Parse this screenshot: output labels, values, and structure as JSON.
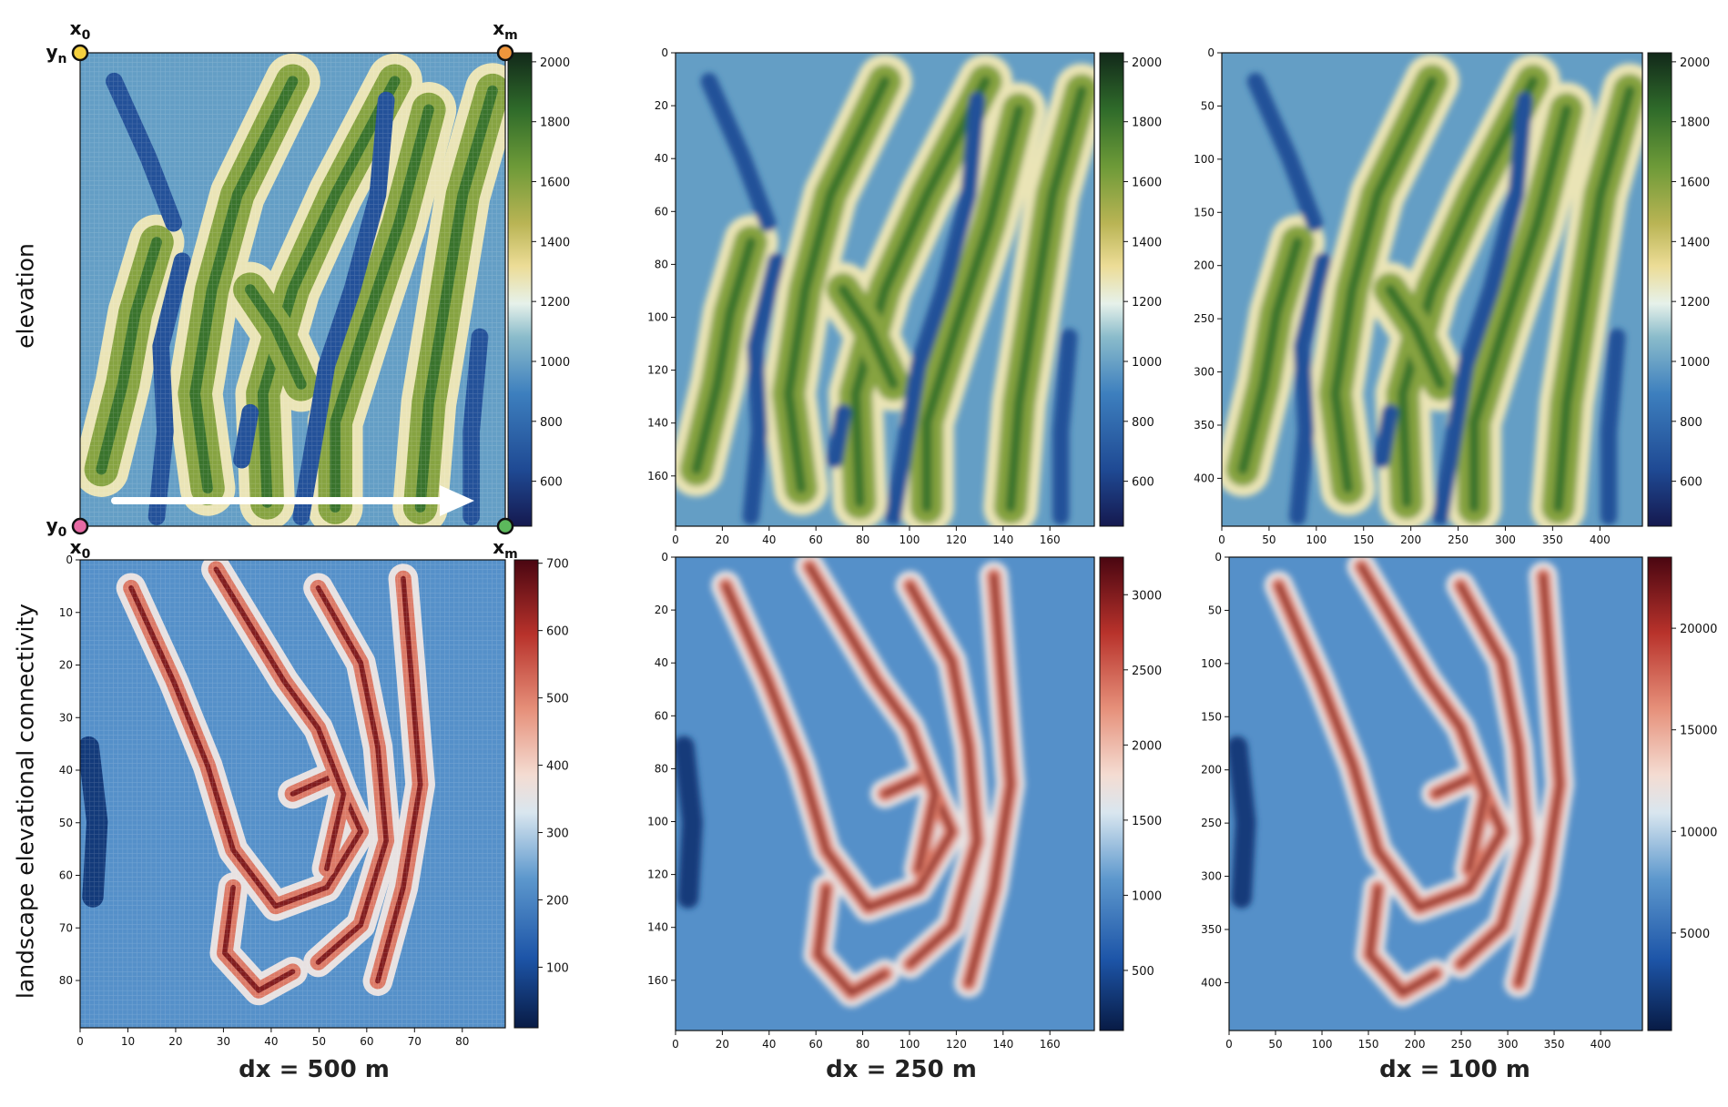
{
  "figure": {
    "row_labels": [
      "elevation",
      "landscape elevational connectivity"
    ],
    "column_labels": [
      "dx = 500 m",
      "dx = 250 m",
      "dx = 100 m"
    ],
    "corner_labels": {
      "x0": "x0",
      "xm": "xm",
      "y0": "y0",
      "yn": "yn",
      "colors": {
        "x0": "#f4d03f",
        "xm_top": "#f0963c",
        "y0": "#e76aa4",
        "xm_bottom": "#5cb85c"
      }
    }
  },
  "chart_data": [
    {
      "type": "heatmap",
      "id": "elevation-500",
      "colormap": "gist_earth-like (navy–blue–white–yellow–green)",
      "colorbar": {
        "range": [
          450,
          2030
        ],
        "ticks": [
          600,
          800,
          1000,
          1200,
          1400,
          1600,
          1800,
          2000
        ]
      },
      "xticks": [],
      "yticks": [],
      "grid": false
    },
    {
      "type": "heatmap",
      "id": "elevation-250",
      "colormap": "gist_earth-like (navy–blue–white–yellow–green)",
      "xlim": [
        0,
        179
      ],
      "ylim": [
        179,
        0
      ],
      "xticks": [
        0,
        20,
        40,
        60,
        80,
        100,
        120,
        140,
        160
      ],
      "yticks": [
        0,
        20,
        40,
        60,
        80,
        100,
        120,
        140,
        160
      ],
      "colorbar": {
        "range": [
          450,
          2030
        ],
        "ticks": [
          600,
          800,
          1000,
          1200,
          1400,
          1600,
          1800,
          2000
        ]
      },
      "grid": false
    },
    {
      "type": "heatmap",
      "id": "elevation-100",
      "colormap": "gist_earth-like (navy–blue–white–yellow–green)",
      "xlim": [
        0,
        445
      ],
      "ylim": [
        445,
        0
      ],
      "xticks": [
        0,
        50,
        100,
        150,
        200,
        250,
        300,
        350,
        400
      ],
      "yticks": [
        0,
        50,
        100,
        150,
        200,
        250,
        300,
        350,
        400
      ],
      "colorbar": {
        "range": [
          450,
          2030
        ],
        "ticks": [
          600,
          800,
          1000,
          1200,
          1400,
          1600,
          1800,
          2000
        ]
      },
      "grid": false
    },
    {
      "type": "heatmap",
      "id": "lec-500",
      "colormap": "RdBu_r-like (navy–blue–white–red–dark red)",
      "xlim": [
        0,
        89
      ],
      "ylim": [
        89,
        0
      ],
      "xticks": [
        0,
        10,
        20,
        30,
        40,
        50,
        60,
        70,
        80
      ],
      "yticks": [
        0,
        10,
        20,
        30,
        40,
        50,
        60,
        70,
        80
      ],
      "colorbar": {
        "range": [
          10,
          705
        ],
        "ticks": [
          100,
          200,
          300,
          400,
          500,
          600,
          700
        ]
      },
      "grid": false
    },
    {
      "type": "heatmap",
      "id": "lec-250",
      "colormap": "RdBu_r-like (navy–blue–white–red–dark red)",
      "xlim": [
        0,
        179
      ],
      "ylim": [
        179,
        0
      ],
      "xticks": [
        0,
        20,
        40,
        60,
        80,
        100,
        120,
        140,
        160
      ],
      "yticks": [
        0,
        20,
        40,
        60,
        80,
        100,
        120,
        140,
        160
      ],
      "colorbar": {
        "range": [
          100,
          3250
        ],
        "ticks": [
          500,
          1000,
          1500,
          2000,
          2500,
          3000
        ]
      },
      "grid": false
    },
    {
      "type": "heatmap",
      "id": "lec-100",
      "colormap": "RdBu_r-like (navy–blue–white–red–dark red)",
      "xlim": [
        0,
        445
      ],
      "ylim": [
        445,
        0
      ],
      "xticks": [
        0,
        50,
        100,
        150,
        200,
        250,
        300,
        350,
        400
      ],
      "yticks": [
        0,
        50,
        100,
        150,
        200,
        250,
        300,
        350,
        400
      ],
      "colorbar": {
        "range": [
          200,
          23500
        ],
        "ticks": [
          5000,
          10000,
          15000,
          20000
        ]
      },
      "grid": false
    }
  ]
}
